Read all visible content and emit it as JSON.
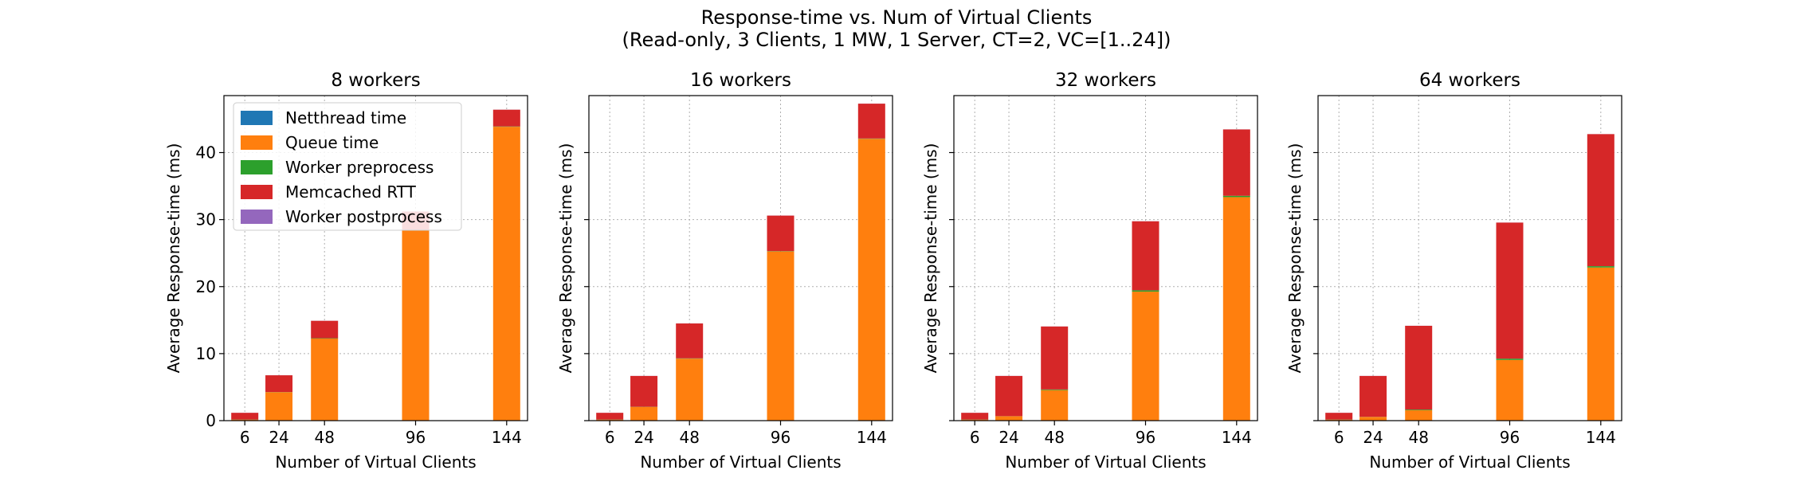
{
  "figure": {
    "title_line1": "Response-time vs. Num of Virtual Clients",
    "title_line2": "(Read-only, 3 Clients, 1 MW, 1 Server, CT=2, VC=[1..24])"
  },
  "colors": {
    "Netthread time": "#1f77b4",
    "Queue time": "#ff7f0e",
    "Worker preprocess": "#2ca02c",
    "Memcached RTT": "#d62728",
    "Worker postprocess": "#9467bd"
  },
  "chart_data": [
    {
      "type": "bar",
      "stacked": true,
      "title": "8 workers",
      "xlabel": "Number of Virtual Clients",
      "ylabel": "Average Response-time (ms)",
      "x": [
        6,
        24,
        48,
        96,
        144
      ],
      "xticks": [
        6,
        24,
        48,
        96,
        144
      ],
      "yticks": [
        0,
        10,
        20,
        30,
        40
      ],
      "ytick_labels_visible": true,
      "ylim": [
        0,
        48.5
      ],
      "grid": true,
      "legend": "upper-left",
      "series": [
        {
          "name": "Netthread time",
          "values": [
            0.05,
            0.05,
            0.05,
            0.05,
            0.05
          ]
        },
        {
          "name": "Queue time",
          "values": [
            0.1,
            4.2,
            12.2,
            28.4,
            43.8
          ]
        },
        {
          "name": "Worker preprocess",
          "values": [
            0.02,
            0.02,
            0.05,
            0.05,
            0.05
          ]
        },
        {
          "name": "Memcached RTT",
          "values": [
            1.0,
            2.5,
            2.6,
            2.7,
            2.5
          ]
        },
        {
          "name": "Worker postprocess",
          "values": [
            0.01,
            0.01,
            0.01,
            0.01,
            0.01
          ]
        }
      ]
    },
    {
      "type": "bar",
      "stacked": true,
      "title": "16 workers",
      "xlabel": "Number of Virtual Clients",
      "ylabel": "Average Response-time (ms)",
      "x": [
        6,
        24,
        48,
        96,
        144
      ],
      "xticks": [
        6,
        24,
        48,
        96,
        144
      ],
      "yticks": [
        0,
        10,
        20,
        30,
        40
      ],
      "ytick_labels_visible": false,
      "ylim": [
        0,
        48.5
      ],
      "grid": true,
      "series": [
        {
          "name": "Netthread time",
          "values": [
            0.05,
            0.05,
            0.05,
            0.05,
            0.05
          ]
        },
        {
          "name": "Queue time",
          "values": [
            0.1,
            2.0,
            9.2,
            25.2,
            42.0
          ]
        },
        {
          "name": "Worker preprocess",
          "values": [
            0.02,
            0.02,
            0.05,
            0.05,
            0.05
          ]
        },
        {
          "name": "Memcached RTT",
          "values": [
            1.0,
            4.6,
            5.2,
            5.3,
            5.2
          ]
        },
        {
          "name": "Worker postprocess",
          "values": [
            0.01,
            0.01,
            0.01,
            0.01,
            0.01
          ]
        }
      ]
    },
    {
      "type": "bar",
      "stacked": true,
      "title": "32 workers",
      "xlabel": "Number of Virtual Clients",
      "ylabel": "Average Response-time (ms)",
      "x": [
        6,
        24,
        48,
        96,
        144
      ],
      "xticks": [
        6,
        24,
        48,
        96,
        144
      ],
      "yticks": [
        0,
        10,
        20,
        30,
        40
      ],
      "ytick_labels_visible": false,
      "ylim": [
        0,
        48.5
      ],
      "grid": true,
      "series": [
        {
          "name": "Netthread time",
          "values": [
            0.05,
            0.05,
            0.05,
            0.05,
            0.05
          ]
        },
        {
          "name": "Queue time",
          "values": [
            0.1,
            0.6,
            4.5,
            19.2,
            33.3
          ]
        },
        {
          "name": "Worker preprocess",
          "values": [
            0.02,
            0.02,
            0.1,
            0.2,
            0.2
          ]
        },
        {
          "name": "Memcached RTT",
          "values": [
            1.0,
            6.0,
            9.4,
            10.3,
            9.9
          ]
        },
        {
          "name": "Worker postprocess",
          "values": [
            0.01,
            0.01,
            0.01,
            0.01,
            0.01
          ]
        }
      ]
    },
    {
      "type": "bar",
      "stacked": true,
      "title": "64 workers",
      "xlabel": "Number of Virtual Clients",
      "ylabel": "Average Response-time (ms)",
      "x": [
        6,
        24,
        48,
        96,
        144
      ],
      "xticks": [
        6,
        24,
        48,
        96,
        144
      ],
      "yticks": [
        0,
        10,
        20,
        30,
        40
      ],
      "ytick_labels_visible": false,
      "ylim": [
        0,
        48.5
      ],
      "grid": true,
      "series": [
        {
          "name": "Netthread time",
          "values": [
            0.05,
            0.05,
            0.05,
            0.05,
            0.05
          ]
        },
        {
          "name": "Queue time",
          "values": [
            0.1,
            0.5,
            1.5,
            9.0,
            22.8
          ]
        },
        {
          "name": "Worker preprocess",
          "values": [
            0.02,
            0.02,
            0.1,
            0.2,
            0.2
          ]
        },
        {
          "name": "Memcached RTT",
          "values": [
            1.0,
            6.1,
            12.5,
            20.3,
            19.7
          ]
        },
        {
          "name": "Worker postprocess",
          "values": [
            0.01,
            0.01,
            0.01,
            0.01,
            0.01
          ]
        }
      ]
    }
  ]
}
